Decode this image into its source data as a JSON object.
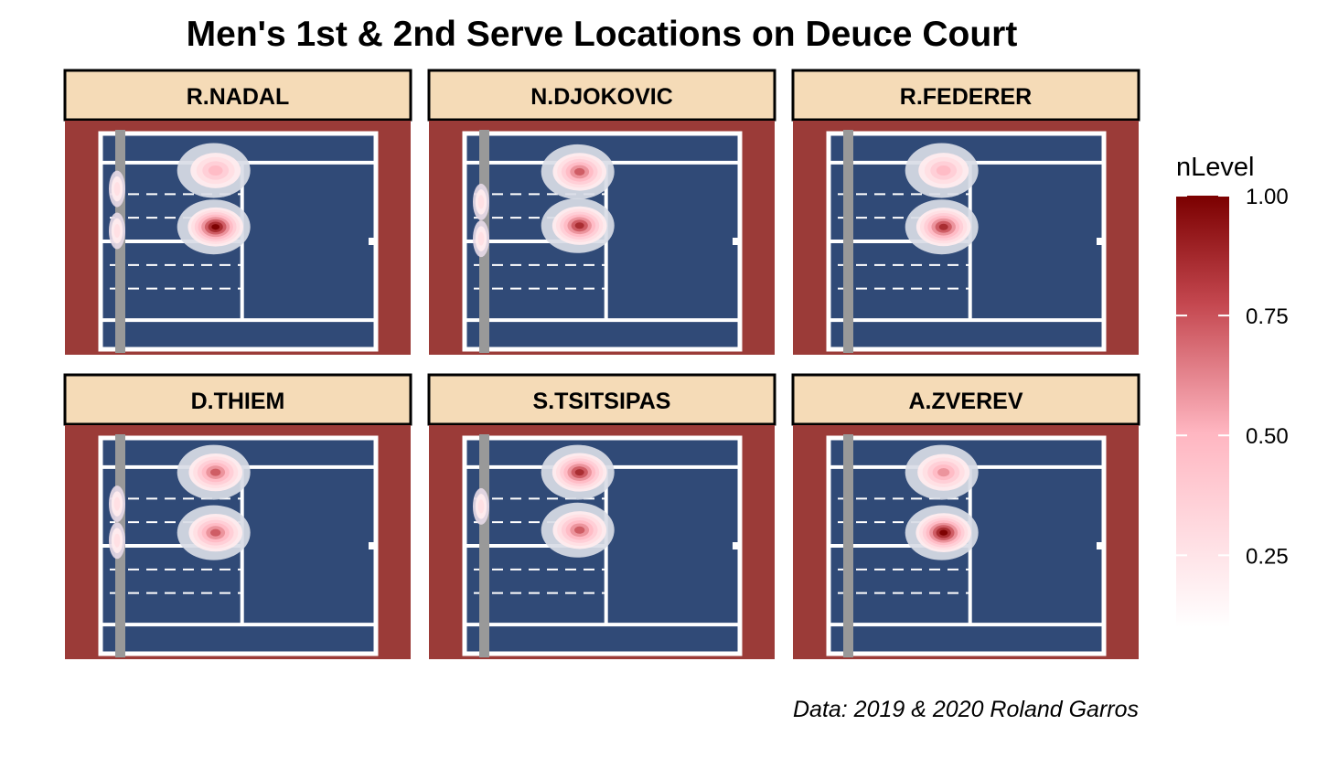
{
  "title": "Men's 1st & 2nd Serve Locations on Deuce Court",
  "caption": "Data: 2019 & 2020 Roland Garros",
  "colors": {
    "clay": "#9b3b38",
    "court": "#304a77",
    "lines": "#ffffff",
    "net": "#999999",
    "strip_fill": "#f5dbb7",
    "strip_border": "#000000",
    "density_low": "#ffffff",
    "density_mid": "#ffb6c1",
    "density_high": "#7b0000",
    "density_outer": "#d9dce6"
  },
  "chart_data": {
    "type": "heatmap",
    "title": "Men's 1st & 2nd Serve Locations on Deuce Court",
    "caption": "Data: 2019 & 2020 Roland Garros",
    "legend": {
      "title": "nLevel",
      "position": "right",
      "range": [
        0.1,
        1.0
      ],
      "ticks": [
        "0.25",
        "0.50",
        "0.75",
        "1.00"
      ],
      "tick_values": [
        0.25,
        0.5,
        0.75,
        1.0
      ]
    },
    "facets": [
      {
        "name": "R.NADAL",
        "clusters": [
          {
            "x": 9.4,
            "y": 2.7,
            "peak": 0.5
          },
          {
            "x": 9.4,
            "y": 0.55,
            "peak": 1.0
          },
          {
            "x": 0.0,
            "y": 2.0,
            "peak": 0.2
          },
          {
            "x": 0.0,
            "y": 0.4,
            "peak": 0.25
          }
        ]
      },
      {
        "name": "N.DJOKOVIC",
        "clusters": [
          {
            "x": 9.4,
            "y": 2.65,
            "peak": 0.8
          },
          {
            "x": 9.4,
            "y": 0.6,
            "peak": 0.85
          },
          {
            "x": 0.0,
            "y": 1.5,
            "peak": 0.2
          },
          {
            "x": 0.0,
            "y": 0.1,
            "peak": 0.2
          }
        ]
      },
      {
        "name": "R.FEDERER",
        "clusters": [
          {
            "x": 9.4,
            "y": 2.7,
            "peak": 0.45
          },
          {
            "x": 9.4,
            "y": 0.55,
            "peak": 0.95
          }
        ]
      },
      {
        "name": "D.THIEM",
        "clusters": [
          {
            "x": 9.4,
            "y": 2.8,
            "peak": 0.8
          },
          {
            "x": 9.4,
            "y": 0.5,
            "peak": 0.8
          },
          {
            "x": 0.0,
            "y": 1.6,
            "peak": 0.2
          },
          {
            "x": 0.0,
            "y": 0.2,
            "peak": 0.2
          }
        ]
      },
      {
        "name": "S.TSITSIPAS",
        "clusters": [
          {
            "x": 9.4,
            "y": 2.8,
            "peak": 0.95
          },
          {
            "x": 9.4,
            "y": 0.6,
            "peak": 0.75
          },
          {
            "x": 0.0,
            "y": 1.5,
            "peak": 0.2
          }
        ]
      },
      {
        "name": "A.ZVEREV",
        "clusters": [
          {
            "x": 9.4,
            "y": 2.8,
            "peak": 0.6
          },
          {
            "x": 9.4,
            "y": 0.5,
            "peak": 1.0
          }
        ]
      }
    ]
  }
}
